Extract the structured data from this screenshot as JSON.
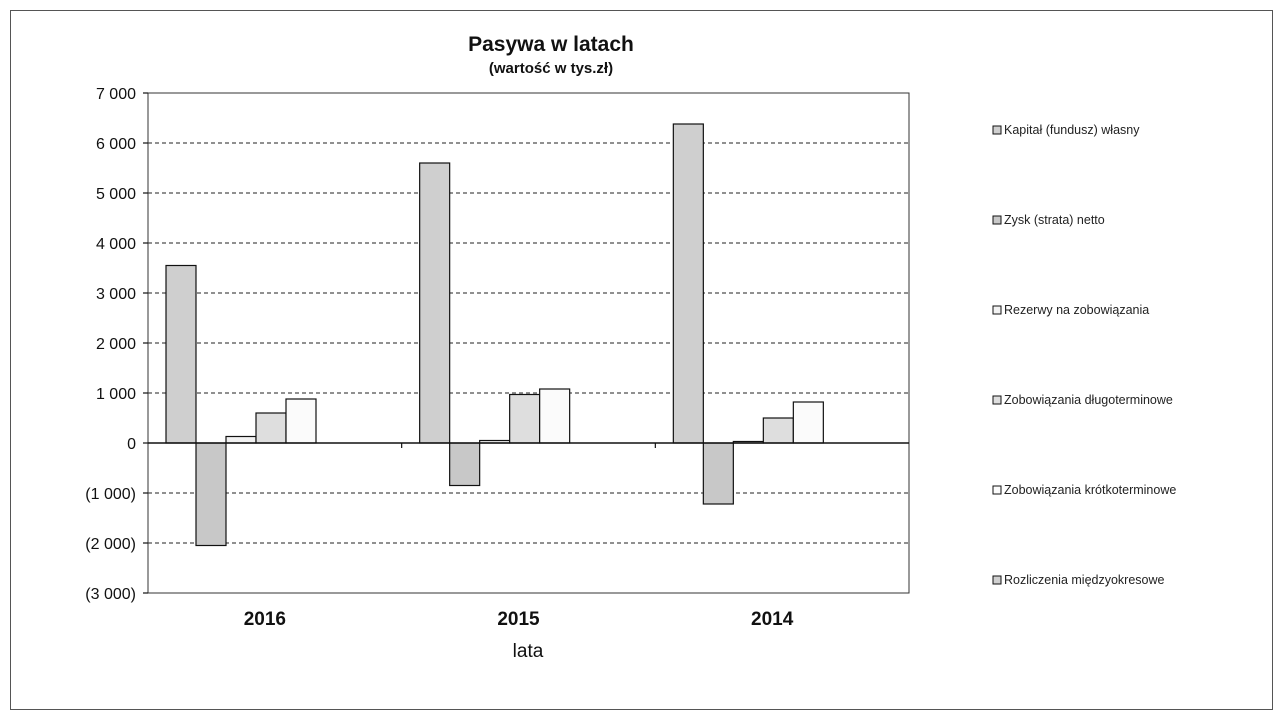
{
  "chart_data": {
    "type": "bar",
    "title": "Pasywa w latach",
    "subtitle": "(wartość w tys.zł)",
    "xlabel": "lata",
    "ylabel": "",
    "categories": [
      "2016",
      "2015",
      "2014"
    ],
    "ylim": [
      -3000,
      7000
    ],
    "yticks": [
      7000,
      6000,
      5000,
      4000,
      3000,
      2000,
      1000,
      0,
      -1000,
      -2000,
      -3000
    ],
    "ytick_labels": [
      "7 000",
      "6 000",
      "5 000",
      "4 000",
      "3 000",
      "2 000",
      "1 000",
      "0",
      "(1 000)",
      "(2 000)",
      "(3 000)"
    ],
    "grid": true,
    "legend_position": "right",
    "series": [
      {
        "name": "Kapitał (fundusz) własny",
        "values": [
          3550,
          5600,
          6380
        ],
        "color": "#cfcfcf"
      },
      {
        "name": "Zysk (strata) netto",
        "values": [
          -2050,
          -850,
          -1220
        ],
        "color": "#c8c8c8"
      },
      {
        "name": "Rezerwy na zobowiązania",
        "values": [
          130,
          50,
          30
        ],
        "color": "#f2f2f2"
      },
      {
        "name": "Zobowiązania długoterminowe",
        "values": [
          600,
          970,
          500
        ],
        "color": "#dedede"
      },
      {
        "name": "Zobowiązania krótkoterminowe",
        "values": [
          880,
          1080,
          820
        ],
        "color": "#fbfbfb"
      },
      {
        "name": "Rozliczenia międzyokresowe",
        "values": [
          0,
          0,
          0
        ],
        "color": "#d0d0d0"
      }
    ]
  }
}
